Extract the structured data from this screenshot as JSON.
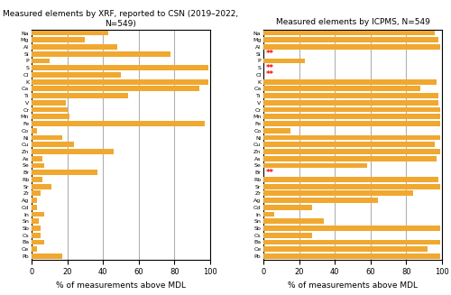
{
  "chart_data": [
    {
      "type": "bar",
      "orientation": "horizontal",
      "title": "Measured elements by XRF, reported to CSN (2019–2022, N=549)",
      "x_label": "% of measurements above MDL",
      "categories": [
        "Na",
        "Mg",
        "Al",
        "Si",
        "P",
        "S",
        "Cl",
        "K",
        "Ca",
        "Ti",
        "V",
        "Cr",
        "Mn",
        "Fe",
        "Co",
        "Ni",
        "Cu",
        "Zn",
        "As",
        "Se",
        "Br",
        "Rb",
        "Sr",
        "Zr",
        "Ag",
        "Cd",
        "In",
        "Sn",
        "Sb",
        "Cs",
        "Ba",
        "Ce",
        "Pb"
      ],
      "values": [
        43,
        30,
        48,
        78,
        10,
        99,
        50,
        99,
        94,
        54,
        19,
        20,
        21,
        97,
        3,
        17,
        24,
        46,
        6,
        7,
        37,
        6,
        11,
        5,
        3,
        3,
        7,
        4,
        5,
        5,
        7,
        3,
        17
      ],
      "color": "#F0A830",
      "xlim": [
        0,
        100
      ],
      "xticks": [
        0,
        20,
        40,
        60,
        80,
        100
      ],
      "grid": true
    },
    {
      "type": "bar",
      "orientation": "horizontal",
      "title": "Measured elements by ICPMS, N=549",
      "x_label": "% of measurements above MDL",
      "categories": [
        "Na",
        "Mg",
        "Al",
        "Si",
        "P",
        "S",
        "Cl",
        "K",
        "Ca",
        "Ti",
        "V",
        "Cr",
        "Mn",
        "Fe",
        "Co",
        "Ni",
        "Cu",
        "Zn",
        "As",
        "Se",
        "Br",
        "Rb",
        "Sr",
        "Zr",
        "Ag",
        "Cd",
        "In",
        "Sn",
        "Sb",
        "Cs",
        "Ba",
        "Ce",
        "Pb"
      ],
      "values": [
        96,
        98,
        99,
        0,
        23,
        0,
        0,
        97,
        88,
        98,
        98,
        99,
        99,
        99,
        15,
        99,
        96,
        99,
        97,
        58,
        0,
        98,
        99,
        84,
        64,
        27,
        6,
        34,
        99,
        27,
        99,
        92,
        99
      ],
      "color": "#F0A830",
      "xlim": [
        0,
        100
      ],
      "xticks": [
        0,
        20,
        40,
        60,
        80,
        100
      ],
      "grid": true,
      "annotations": [
        {
          "text": "**",
          "category": "Si",
          "color": "red"
        },
        {
          "text": "**",
          "category": "S",
          "color": "red"
        },
        {
          "text": "**",
          "category": "Cl",
          "color": "red"
        },
        {
          "text": "**",
          "category": "Br",
          "color": "red"
        }
      ]
    }
  ]
}
